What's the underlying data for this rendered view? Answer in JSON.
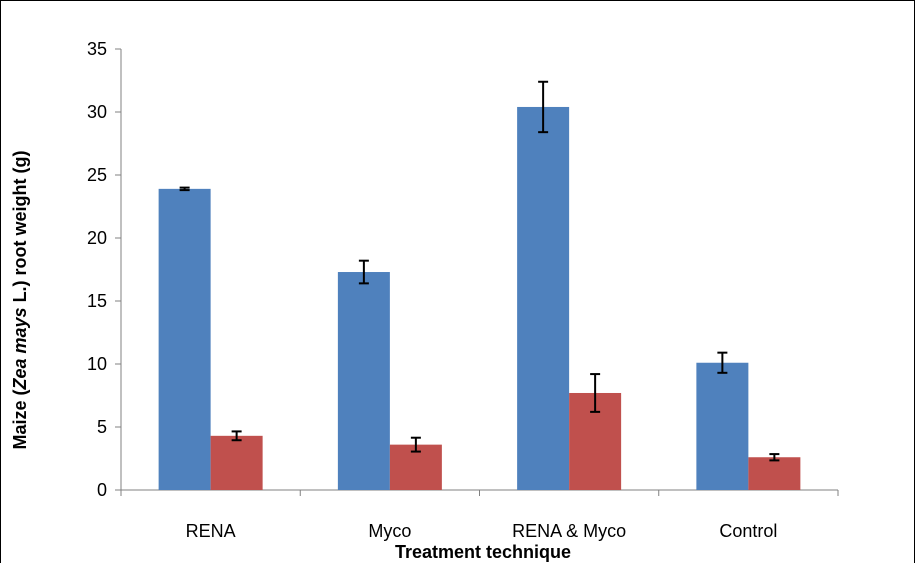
{
  "chart_data": {
    "type": "bar",
    "categories": [
      "RENA",
      "Myco",
      "RENA & Myco",
      "Control"
    ],
    "series": [
      {
        "values": [
          23.9,
          17.3,
          30.4,
          10.1
        ],
        "errors": [
          0.1,
          0.9,
          2.0,
          0.8
        ],
        "color": "#4f81bd"
      },
      {
        "values": [
          4.3,
          3.6,
          7.7,
          2.6
        ],
        "errors": [
          0.35,
          0.55,
          1.5,
          0.25
        ],
        "color": "#c0504d"
      }
    ],
    "xlabel": "Treatment technique",
    "ylabel_parts": [
      "Maize (",
      "Zea mays",
      " L.)   root weight (g)"
    ],
    "ylim": [
      0,
      35
    ],
    "yticks": [
      0,
      5,
      10,
      15,
      20,
      25,
      30,
      35
    ],
    "grid": false,
    "legend": "none"
  }
}
